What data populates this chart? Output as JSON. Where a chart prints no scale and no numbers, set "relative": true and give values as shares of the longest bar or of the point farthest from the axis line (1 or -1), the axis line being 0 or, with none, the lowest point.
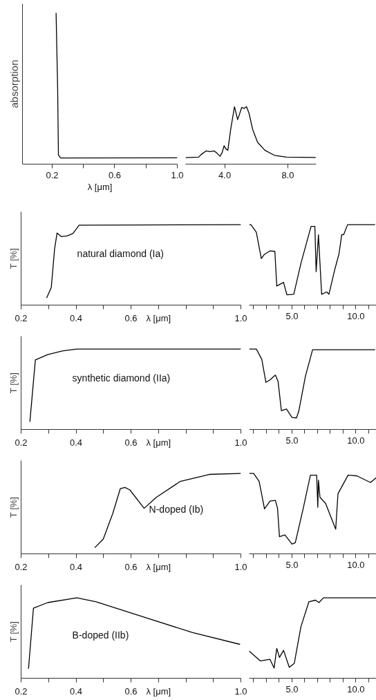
{
  "chart_data": [
    {
      "type": "line",
      "relative": true,
      "xlabel": "λ [μm]",
      "ylabel": "absorption",
      "xlim": [
        0.01,
        1.0
      ],
      "xticks": [
        0.2,
        {
          "value": 0.4,
          "label": null
        },
        0.6,
        {
          "value": 0.8,
          "label": null
        },
        {
          "value": 1,
          "label": "1.0"
        }
      ],
      "series": [
        {
          "color": "#000000",
          "x": [
            0.225,
            0.235,
            0.24,
            0.254,
            1.0
          ],
          "values": [
            1.0,
            0.5,
            0.06,
            0.041,
            0.042
          ]
        }
      ]
    },
    {
      "type": "line",
      "relative": true,
      "xlim": [
        1.52,
        9.8
      ],
      "xticks": [
        {
          "value": 4,
          "label": "4.0"
        },
        {
          "value": 8,
          "label": "8.0"
        }
      ],
      "series": [
        {
          "color": "#000000",
          "x": [
            1.52,
            2.35,
            2.48,
            2.81,
            3.07,
            3.34,
            3.54,
            3.7,
            3.84,
            3.96,
            4.08,
            4.2,
            4.38,
            4.62,
            4.82,
            5.08,
            5.23,
            5.38,
            5.54,
            5.77,
            6.08,
            6.54,
            7.15,
            7.92,
            9.77
          ],
          "values": [
            0.113,
            0.121,
            0.161,
            0.229,
            0.218,
            0.229,
            0.182,
            0.137,
            0.203,
            0.321,
            0.263,
            0.242,
            0.605,
            1.0,
            0.774,
            0.987,
            0.968,
            1.0,
            0.887,
            0.605,
            0.382,
            0.242,
            0.153,
            0.121,
            0.116
          ]
        }
      ]
    },
    {
      "type": "line",
      "relative": true,
      "xlabel": "λ [μm]",
      "ylabel": "T [%]",
      "xlim": [
        0.2,
        1.0
      ],
      "annotations": [
        "natural diamond (Ia)"
      ],
      "xticks": [
        0.2,
        {
          "value": 0.3,
          "label": null
        },
        0.4,
        {
          "value": 0.5,
          "label": null
        },
        0.6,
        {
          "value": 0.7,
          "label": null
        },
        {
          "value": 0.8,
          "label": null
        },
        {
          "value": 0.9,
          "label": null
        },
        {
          "value": 1,
          "label": "1.0"
        }
      ],
      "series": [
        {
          "color": "#000000",
          "x": [
            0.293,
            0.31,
            0.322,
            0.331,
            0.346,
            0.368,
            0.389,
            0.411,
            1.0
          ],
          "values": [
            0.089,
            0.22,
            0.7,
            0.896,
            0.852,
            0.861,
            0.89,
            0.994,
            1.0
          ]
        }
      ]
    },
    {
      "type": "line",
      "relative": true,
      "xlim": [
        1.65,
        11.6
      ],
      "xticks": [
        {
          "value": 2,
          "label": null
        },
        {
          "value": 3,
          "label": null
        },
        {
          "value": 4,
          "label": null
        },
        {
          "value": 5,
          "label": "5.0"
        },
        {
          "value": 6,
          "label": null
        },
        {
          "value": 7,
          "label": null
        },
        {
          "value": 8,
          "label": null
        },
        {
          "value": 9,
          "label": null
        },
        {
          "value": 10,
          "label": "10.0"
        },
        {
          "value": 11,
          "label": null
        }
      ],
      "series": [
        {
          "color": "#000000",
          "x": [
            1.65,
            1.79,
            2.21,
            2.6,
            2.85,
            3.28,
            3.66,
            3.81,
            4.34,
            4.6,
            5.14,
            5.7,
            6.49,
            6.79,
            6.89,
            7.07,
            7.32,
            7.72,
            7.89,
            8.33,
            8.68,
            8.89,
            9.04,
            9.35,
            11.5
          ],
          "values": [
            1.0,
            1.0,
            0.905,
            0.579,
            0.632,
            0.674,
            0.668,
            0.237,
            0.282,
            0.128,
            0.134,
            0.519,
            0.979,
            0.979,
            0.415,
            0.875,
            0.134,
            0.163,
            0.134,
            0.43,
            0.638,
            0.875,
            0.875,
            1.0,
            1.0
          ]
        }
      ]
    },
    {
      "type": "line",
      "relative": true,
      "xlabel": "λ [μm]",
      "ylabel": "T [%]",
      "xlim": [
        0.2,
        1.0
      ],
      "annotations": [
        "synthetic diamond (IIa)"
      ],
      "xticks": [
        0.2,
        {
          "value": 0.3,
          "label": null
        },
        0.4,
        {
          "value": 0.5,
          "label": null
        },
        0.6,
        {
          "value": 0.7,
          "label": null
        },
        {
          "value": 0.8,
          "label": null
        },
        {
          "value": 0.9,
          "label": null
        },
        {
          "value": 1,
          "label": "1.0"
        }
      ],
      "series": [
        {
          "color": "#000000",
          "x": [
            0.232,
            0.252,
            0.297,
            0.35,
            0.403,
            1.0
          ],
          "values": [
            0.096,
            0.865,
            0.931,
            0.976,
            1.0,
            1.0
          ]
        }
      ]
    },
    {
      "type": "line",
      "relative": true,
      "xlim": [
        1.65,
        11.6
      ],
      "xticks": [
        {
          "value": 2,
          "label": null
        },
        {
          "value": 3,
          "label": null
        },
        {
          "value": 4,
          "label": null
        },
        {
          "value": 5,
          "label": "5.0"
        },
        {
          "value": 6,
          "label": null
        },
        {
          "value": 7,
          "label": null
        },
        {
          "value": 8,
          "label": null
        },
        {
          "value": 9,
          "label": null
        },
        {
          "value": 10,
          "label": "10.0"
        },
        {
          "value": 11,
          "label": null
        }
      ],
      "series": [
        {
          "color": "#000000",
          "x": [
            1.65,
            2.21,
            2.64,
            2.96,
            3.28,
            3.7,
            3.91,
            4.17,
            4.57,
            5.0,
            5.35,
            5.53,
            6.05,
            6.61,
            11.5
          ],
          "values": [
            1.0,
            1.0,
            0.871,
            0.586,
            0.616,
            0.676,
            0.6,
            0.234,
            0.255,
            0.15,
            0.144,
            0.225,
            0.66,
            0.991,
            0.991
          ]
        }
      ]
    },
    {
      "type": "line",
      "relative": true,
      "xlabel": "λ [μm]",
      "ylabel": "T [%]",
      "xlim": [
        0.2,
        1.0
      ],
      "annotations": [
        "N-doped (Ib)"
      ],
      "xticks": [
        0.2,
        {
          "value": 0.3,
          "label": null
        },
        0.4,
        {
          "value": 0.5,
          "label": null
        },
        0.6,
        {
          "value": 0.7,
          "label": null
        },
        {
          "value": 0.8,
          "label": null
        },
        {
          "value": 0.9,
          "label": null
        },
        {
          "value": 1,
          "label": "1.0"
        }
      ],
      "series": [
        {
          "color": "#000000",
          "x": [
            0.468,
            0.499,
            0.534,
            0.561,
            0.578,
            0.596,
            0.648,
            0.692,
            0.78,
            0.885,
            1.0
          ],
          "values": [
            0.076,
            0.183,
            0.505,
            0.81,
            0.826,
            0.795,
            0.566,
            0.703,
            0.902,
            0.988,
            1.0
          ]
        }
      ]
    },
    {
      "type": "line",
      "relative": true,
      "xlim": [
        1.65,
        11.6
      ],
      "xticks": [
        {
          "value": 2,
          "label": null
        },
        {
          "value": 3,
          "label": null
        },
        {
          "value": 4,
          "label": null
        },
        {
          "value": 5,
          "label": "5.0"
        },
        {
          "value": 6,
          "label": null
        },
        {
          "value": 7,
          "label": null
        },
        {
          "value": 8,
          "label": null
        },
        {
          "value": 9,
          "label": null
        },
        {
          "value": 10,
          "label": "10.0"
        },
        {
          "value": 11,
          "label": null
        }
      ],
      "series": [
        {
          "color": "#000000",
          "x": [
            1.65,
            2.0,
            2.43,
            2.85,
            3.28,
            3.7,
            3.87,
            4.02,
            4.45,
            5.0,
            5.26,
            5.88,
            6.44,
            6.93,
            7.02,
            7.07,
            7.19,
            7.63,
            8.42,
            8.6,
            9.39,
            10.09,
            11.14,
            11.6
          ],
          "values": [
            1.0,
            1.0,
            0.902,
            0.56,
            0.657,
            0.664,
            0.566,
            0.214,
            0.235,
            0.122,
            0.138,
            0.566,
            0.979,
            0.979,
            0.58,
            0.917,
            0.703,
            0.627,
            0.306,
            0.749,
            0.979,
            0.969,
            0.887,
            0.948
          ]
        }
      ]
    },
    {
      "type": "line",
      "relative": true,
      "xlabel": "λ [μm]",
      "ylabel": "T [%]",
      "xlim": [
        0.2,
        1.0
      ],
      "annotations": [
        "B-doped (IIb)"
      ],
      "xticks": [
        0.2,
        {
          "value": 0.3,
          "label": null
        },
        0.4,
        {
          "value": 0.5,
          "label": null
        },
        0.6,
        {
          "value": 0.7,
          "label": null
        },
        {
          "value": 0.8,
          "label": null
        },
        {
          "value": 0.9,
          "label": null
        },
        {
          "value": 1,
          "label": "1.0"
        }
      ],
      "series": [
        {
          "color": "#000000",
          "x": [
            0.227,
            0.245,
            0.297,
            0.403,
            0.473,
            0.648,
            0.824,
            0.997
          ],
          "values": [
            0.118,
            0.871,
            0.941,
            1.0,
            0.95,
            0.759,
            0.568,
            0.421
          ]
        }
      ]
    },
    {
      "type": "line",
      "relative": true,
      "xlim": [
        1.65,
        11.6
      ],
      "xticks": [
        {
          "value": 2,
          "label": null
        },
        {
          "value": 3,
          "label": null
        },
        {
          "value": 4,
          "label": null
        },
        {
          "value": 5,
          "label": "5.0"
        },
        {
          "value": 6,
          "label": null
        },
        {
          "value": 7,
          "label": null
        },
        {
          "value": 8,
          "label": null
        },
        {
          "value": 9,
          "label": null
        },
        {
          "value": 10,
          "label": "10.0"
        },
        {
          "value": 11,
          "label": null
        }
      ],
      "series": [
        {
          "color": "#000000",
          "x": [
            1.65,
            1.79,
            2.53,
            3.28,
            3.6,
            3.81,
            4.02,
            4.34,
            4.79,
            5.18,
            5.7,
            6.32,
            6.84,
            7.11,
            7.46,
            11.6
          ],
          "values": [
            0.34,
            0.318,
            0.215,
            0.235,
            0.126,
            0.371,
            0.259,
            0.347,
            0.135,
            0.185,
            0.641,
            0.95,
            0.971,
            0.941,
            1.0,
            1.0
          ]
        }
      ]
    }
  ]
}
